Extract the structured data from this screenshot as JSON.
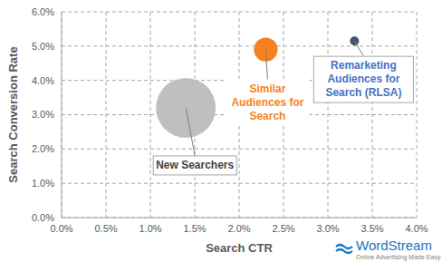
{
  "chart_data": {
    "type": "scatter",
    "x_label": "Search CTR",
    "y_label": "Search Conversion Rate",
    "xlim": [
      0,
      4
    ],
    "xticks": [
      {
        "value": 0,
        "label": "0.0%"
      },
      {
        "value": 0.5,
        "label": "0.5%"
      },
      {
        "value": 1,
        "label": "1.0%"
      },
      {
        "value": 1.5,
        "label": "1.5%"
      },
      {
        "value": 2,
        "label": "2.0%"
      },
      {
        "value": 2.5,
        "label": "2.5%"
      },
      {
        "value": 3,
        "label": "3.0%"
      },
      {
        "value": 3.5,
        "label": "3.5%"
      },
      {
        "value": 4,
        "label": "4.0%"
      }
    ],
    "ylim": [
      0,
      6
    ],
    "yticks": [
      {
        "value": 0,
        "label": "0.0%"
      },
      {
        "value": 1,
        "label": "1.0%"
      },
      {
        "value": 2,
        "label": "2.0%"
      },
      {
        "value": 3,
        "label": "3.0%"
      },
      {
        "value": 4,
        "label": "4.0%"
      },
      {
        "value": 5,
        "label": "5.0%"
      },
      {
        "value": 6,
        "label": "6.0%"
      }
    ],
    "grid": true,
    "series": [
      {
        "name": [
          "New Searchers"
        ],
        "color": "#bfbfbf",
        "x": [
          1.4
        ],
        "values": [
          3.2
        ],
        "sizes": [
          44
        ]
      },
      {
        "name": [
          "Similar",
          "Audiences for",
          "Search"
        ],
        "color": "#f5821f",
        "x": [
          2.3
        ],
        "values": [
          4.9
        ],
        "sizes": [
          7
        ]
      },
      {
        "name": [
          "Remarketing",
          "Audiences for",
          "Search (RLSA)"
        ],
        "color": "#44546a",
        "x": [
          3.3
        ],
        "values": [
          5.15
        ],
        "sizes": [
          1
        ]
      }
    ],
    "watermark": {
      "name": "WordStream",
      "tagline": "Online Advertising Made Easy"
    }
  }
}
